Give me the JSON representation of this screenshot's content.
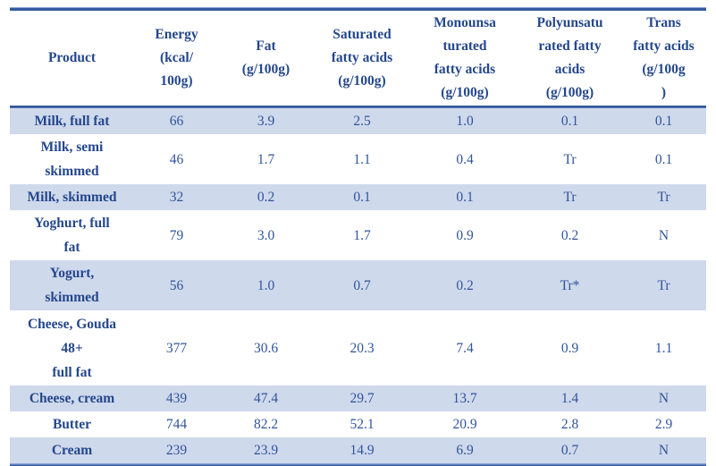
{
  "colors": {
    "border_blue": "#35599f",
    "band_blue": "#cfd9ec",
    "header_text_blue": "#24478c",
    "value_text_blue": "#30549a"
  },
  "table": {
    "columns": [
      {
        "id": "product",
        "lines": [
          "Product"
        ]
      },
      {
        "id": "energy",
        "lines": [
          "Energy",
          "(kcal/",
          "100g)"
        ]
      },
      {
        "id": "fat",
        "lines": [
          "Fat",
          "(g/100g)"
        ]
      },
      {
        "id": "saturated",
        "lines": [
          "Saturated",
          "fatty acids",
          "(g/100g)"
        ]
      },
      {
        "id": "monounsaturated",
        "lines": [
          "Monounsa",
          "turated",
          "fatty acids",
          "(g/100g)"
        ]
      },
      {
        "id": "polyunsaturated",
        "lines": [
          "Polyunsatu",
          "rated fatty",
          "acids",
          "(g/100g)"
        ]
      },
      {
        "id": "trans",
        "lines": [
          "Trans",
          "fatty acids",
          "(g/100g",
          ")"
        ]
      }
    ],
    "rows": [
      {
        "product_lines": [
          "Milk, full fat"
        ],
        "energy": "66",
        "fat": "3.9",
        "saturated": "2.5",
        "monounsaturated": "1.0",
        "polyunsaturated": "0.1",
        "trans": "0.1"
      },
      {
        "product_lines": [
          "Milk, semi",
          "skimmed"
        ],
        "energy": "46",
        "fat": "1.7",
        "saturated": "1.1",
        "monounsaturated": "0.4",
        "polyunsaturated": "Tr",
        "trans": "0.1"
      },
      {
        "product_lines": [
          "Milk, skimmed"
        ],
        "energy": "32",
        "fat": "0.2",
        "saturated": "0.1",
        "monounsaturated": "0.1",
        "polyunsaturated": "Tr",
        "trans": "Tr"
      },
      {
        "product_lines": [
          "Yoghurt, full",
          "fat"
        ],
        "energy": "79",
        "fat": "3.0",
        "saturated": "1.7",
        "monounsaturated": "0.9",
        "polyunsaturated": "0.2",
        "trans": "N"
      },
      {
        "product_lines": [
          "Yogurt,",
          "skimmed"
        ],
        "energy": "56",
        "fat": "1.0",
        "saturated": "0.7",
        "monounsaturated": "0.2",
        "polyunsaturated": "Tr*",
        "trans": "Tr"
      },
      {
        "product_lines": [
          "Cheese, Gouda",
          "48+",
          "full fat"
        ],
        "energy": "377",
        "fat": "30.6",
        "saturated": "20.3",
        "monounsaturated": "7.4",
        "polyunsaturated": "0.9",
        "trans": "1.1"
      },
      {
        "product_lines": [
          "Cheese, cream"
        ],
        "energy": "439",
        "fat": "47.4",
        "saturated": "29.7",
        "monounsaturated": "13.7",
        "polyunsaturated": "1.4",
        "trans": "N"
      },
      {
        "product_lines": [
          "Butter"
        ],
        "energy": "744",
        "fat": "82.2",
        "saturated": "52.1",
        "monounsaturated": "20.9",
        "polyunsaturated": "2.8",
        "trans": "2.9"
      },
      {
        "product_lines": [
          "Cream"
        ],
        "energy": "239",
        "fat": "23.9",
        "saturated": "14.9",
        "monounsaturated": "6.9",
        "polyunsaturated": "0.7",
        "trans": "N"
      }
    ]
  }
}
